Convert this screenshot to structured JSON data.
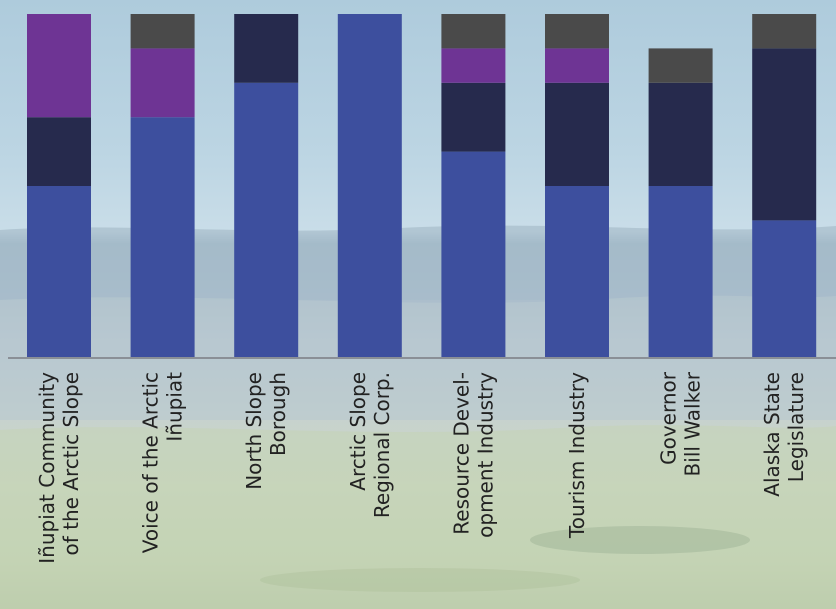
{
  "chart_data": {
    "type": "bar",
    "stacked": true,
    "categories": [
      [
        "Iñupiat Community",
        "of the Arctic Slope"
      ],
      [
        "Voice of the Arctic",
        "Iñupiat"
      ],
      [
        "North Slope",
        "Borough"
      ],
      [
        "Arctic Slope",
        "Regional Corp."
      ],
      [
        "Resource Devel-",
        "opment Industry"
      ],
      [
        "Tourism Industry"
      ],
      [
        "Governor",
        "Bill Walker"
      ],
      [
        "Alaska State",
        "Legislature"
      ]
    ],
    "series": [
      {
        "color": "#3d4f9e",
        "values": [
          5,
          7,
          8,
          10,
          6,
          5,
          5,
          4
        ]
      },
      {
        "color": "#262a4d",
        "values": [
          2,
          0,
          2,
          0,
          2,
          3,
          3,
          5
        ]
      },
      {
        "color": "#6e3494",
        "values": [
          3,
          2,
          0,
          0,
          1,
          1,
          0,
          0
        ]
      },
      {
        "color": "#4a4a4a",
        "values": [
          0,
          1,
          0,
          0,
          1,
          1,
          1,
          1
        ]
      }
    ],
    "ylim": [
      0,
      10
    ],
    "grid": false,
    "legend": "none",
    "title": "",
    "xlabel": "",
    "ylabel": ""
  },
  "colors": {
    "axis": "#8a8f96",
    "label": "#222222"
  }
}
